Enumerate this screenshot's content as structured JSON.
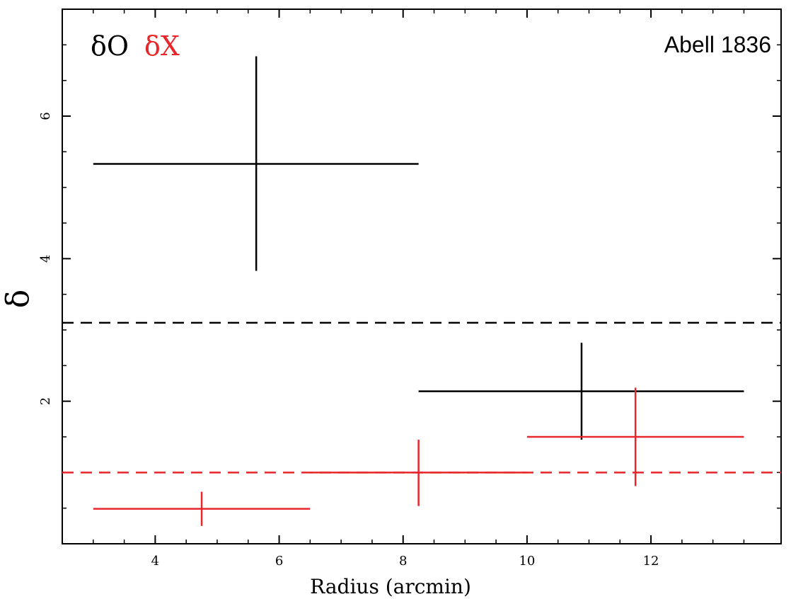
{
  "chart_data": {
    "type": "scatter",
    "title": "",
    "xlabel": "Radius (arcmin)",
    "ylabel": "δ",
    "xlim": [
      2.5,
      14.1
    ],
    "ylim": [
      0,
      7.5
    ],
    "xticks": [
      4,
      6,
      8,
      10,
      12
    ],
    "yticks": [
      2,
      4,
      6
    ],
    "xtick_labels": [
      "4",
      "6",
      "8",
      "10",
      "12"
    ],
    "ytick_labels": [
      "2",
      "4",
      "6"
    ],
    "grid": false,
    "legend_position": "top-left",
    "annotation": "Abell 1836",
    "series": [
      {
        "name": "δO",
        "color": "#000000",
        "points": [
          {
            "x": 5.63,
            "xlo": 3.0,
            "xhi": 8.25,
            "y": 5.33,
            "ylo": 3.83,
            "yhi": 6.84
          },
          {
            "x": 10.88,
            "xlo": 8.25,
            "xhi": 13.5,
            "y": 2.14,
            "ylo": 1.46,
            "yhi": 2.82
          }
        ],
        "reference_line": 3.1
      },
      {
        "name": "δX",
        "color": "#e8262b",
        "points": [
          {
            "x": 4.75,
            "xlo": 3.0,
            "xhi": 6.5,
            "y": 0.49,
            "ylo": 0.25,
            "yhi": 0.73
          },
          {
            "x": 8.25,
            "xlo": 6.5,
            "xhi": 10.0,
            "y": 1.0,
            "ylo": 0.53,
            "yhi": 1.46
          },
          {
            "x": 11.75,
            "xlo": 10.0,
            "xhi": 13.5,
            "y": 1.5,
            "ylo": 0.81,
            "yhi": 2.19
          }
        ],
        "reference_line": 1.0
      }
    ]
  }
}
